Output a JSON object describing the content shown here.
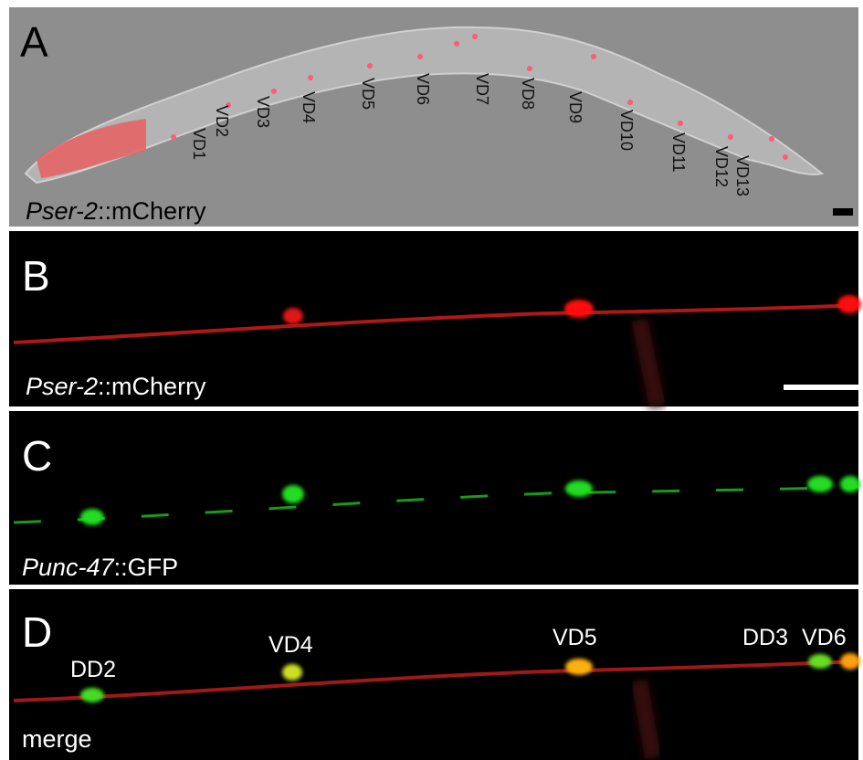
{
  "panels": [
    {
      "letter": "A",
      "caption": {
        "italic": "Pser-2",
        "rest": "::mCherry"
      },
      "labels": [
        "VD1",
        "VD2",
        "VD3",
        "VD4",
        "VD5",
        "VD6",
        "VD7",
        "VD8",
        "VD9",
        "VD10",
        "VD11",
        "VD12",
        "VD13"
      ]
    },
    {
      "letter": "B",
      "caption": {
        "italic": "Pser-2",
        "rest": "::mCherry"
      }
    },
    {
      "letter": "C",
      "caption": {
        "italic": "Punc-47",
        "rest": "::GFP"
      }
    },
    {
      "letter": "D",
      "caption": {
        "rest": "merge"
      },
      "labels": [
        "DD2",
        "VD4",
        "VD5",
        "DD3",
        "VD6"
      ]
    }
  ]
}
